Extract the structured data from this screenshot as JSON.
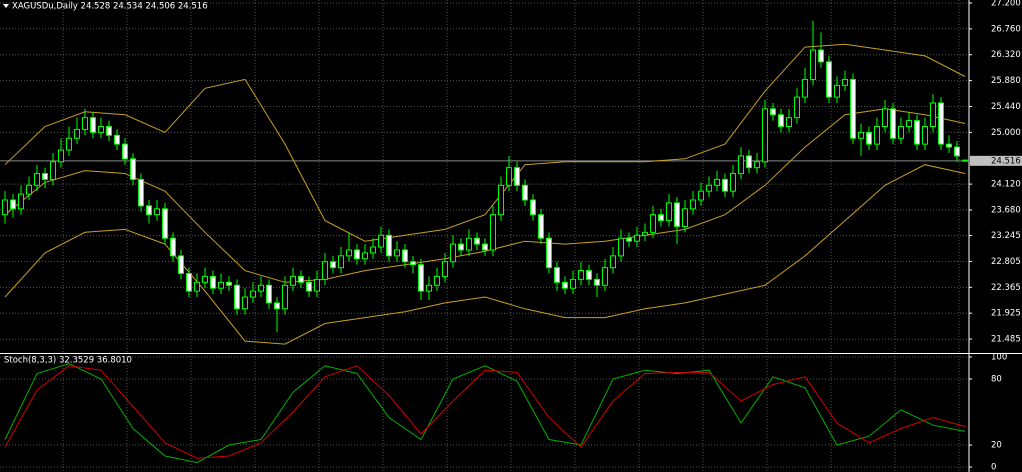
{
  "chart_data": [
    {
      "type": "candlestick",
      "title": "XAGUSDu,Daily 24.528 24.534 24.506 24.516",
      "candle_color": "#00ff00",
      "up_fill": "#000000",
      "down_fill": "#ffffff",
      "ohlc": [
        [
          23.6,
          24.0,
          23.45,
          23.85
        ],
        [
          23.85,
          23.95,
          23.55,
          23.7
        ],
        [
          23.7,
          24.1,
          23.6,
          23.95
        ],
        [
          23.95,
          24.25,
          23.85,
          24.1
        ],
        [
          24.1,
          24.45,
          24.0,
          24.3
        ],
        [
          24.3,
          24.4,
          24.05,
          24.2
        ],
        [
          24.2,
          24.65,
          24.1,
          24.5
        ],
        [
          24.5,
          24.9,
          24.4,
          24.7
        ],
        [
          24.7,
          25.1,
          24.6,
          24.9
        ],
        [
          24.9,
          25.25,
          24.8,
          25.05
        ],
        [
          25.05,
          25.4,
          24.95,
          25.25
        ],
        [
          25.25,
          25.35,
          24.9,
          25.0
        ],
        [
          25.0,
          25.25,
          24.9,
          25.1
        ],
        [
          25.1,
          25.2,
          24.85,
          24.95
        ],
        [
          24.95,
          25.05,
          24.7,
          24.8
        ],
        [
          24.8,
          24.9,
          24.45,
          24.55
        ],
        [
          24.55,
          24.65,
          24.1,
          24.2
        ],
        [
          24.2,
          24.3,
          23.65,
          23.75
        ],
        [
          23.75,
          23.85,
          23.45,
          23.6
        ],
        [
          23.6,
          23.85,
          23.5,
          23.7
        ],
        [
          23.7,
          23.8,
          23.1,
          23.2
        ],
        [
          23.2,
          23.3,
          22.8,
          22.9
        ],
        [
          22.9,
          23.0,
          22.5,
          22.6
        ],
        [
          22.6,
          22.7,
          22.2,
          22.3
        ],
        [
          22.3,
          22.6,
          22.2,
          22.45
        ],
        [
          22.45,
          22.7,
          22.35,
          22.55
        ],
        [
          22.55,
          22.65,
          22.25,
          22.35
        ],
        [
          22.35,
          22.6,
          22.25,
          22.45
        ],
        [
          22.45,
          22.55,
          22.3,
          22.4
        ],
        [
          22.4,
          22.5,
          21.9,
          22.0
        ],
        [
          22.0,
          22.35,
          21.9,
          22.2
        ],
        [
          22.2,
          22.45,
          22.1,
          22.3
        ],
        [
          22.3,
          22.55,
          22.2,
          22.4
        ],
        [
          22.4,
          22.5,
          22.0,
          22.1
        ],
        [
          22.1,
          22.2,
          21.6,
          22.0
        ],
        [
          22.0,
          22.55,
          21.9,
          22.4
        ],
        [
          22.4,
          22.7,
          22.3,
          22.55
        ],
        [
          22.55,
          22.65,
          22.35,
          22.45
        ],
        [
          22.45,
          22.55,
          22.2,
          22.3
        ],
        [
          22.3,
          22.65,
          22.2,
          22.5
        ],
        [
          22.5,
          22.95,
          22.4,
          22.8
        ],
        [
          22.8,
          22.9,
          22.6,
          22.7
        ],
        [
          22.7,
          23.05,
          22.6,
          22.9
        ],
        [
          22.9,
          23.3,
          22.8,
          23.0
        ],
        [
          23.0,
          23.1,
          22.75,
          22.85
        ],
        [
          22.85,
          23.1,
          22.75,
          22.95
        ],
        [
          22.95,
          23.2,
          22.85,
          23.05
        ],
        [
          23.05,
          23.4,
          22.95,
          23.25
        ],
        [
          23.25,
          23.35,
          22.8,
          22.9
        ],
        [
          22.9,
          23.15,
          22.8,
          23.0
        ],
        [
          23.0,
          23.1,
          22.7,
          22.8
        ],
        [
          22.8,
          22.9,
          22.6,
          22.75
        ],
        [
          22.75,
          22.85,
          22.15,
          22.3
        ],
        [
          22.3,
          22.55,
          22.15,
          22.4
        ],
        [
          22.4,
          22.7,
          22.3,
          22.55
        ],
        [
          22.55,
          22.95,
          22.45,
          22.8
        ],
        [
          22.8,
          23.25,
          22.7,
          23.1
        ],
        [
          23.1,
          23.2,
          22.9,
          23.0
        ],
        [
          23.0,
          23.35,
          22.9,
          23.2
        ],
        [
          23.2,
          23.3,
          23.0,
          23.1
        ],
        [
          23.1,
          23.2,
          22.9,
          23.0
        ],
        [
          23.0,
          23.75,
          22.9,
          23.6
        ],
        [
          23.6,
          24.25,
          23.5,
          24.1
        ],
        [
          24.1,
          24.6,
          24.0,
          24.4
        ],
        [
          24.4,
          24.5,
          24.0,
          24.1
        ],
        [
          24.1,
          24.2,
          23.75,
          23.85
        ],
        [
          23.85,
          23.95,
          23.5,
          23.6
        ],
        [
          23.6,
          23.7,
          23.1,
          23.2
        ],
        [
          23.2,
          23.3,
          22.6,
          22.7
        ],
        [
          22.7,
          22.8,
          22.3,
          22.45
        ],
        [
          22.45,
          22.55,
          22.25,
          22.35
        ],
        [
          22.35,
          22.65,
          22.25,
          22.5
        ],
        [
          22.5,
          22.8,
          22.4,
          22.65
        ],
        [
          22.65,
          22.75,
          22.4,
          22.5
        ],
        [
          22.5,
          22.6,
          22.2,
          22.4
        ],
        [
          22.4,
          22.85,
          22.3,
          22.7
        ],
        [
          22.7,
          23.05,
          22.6,
          22.9
        ],
        [
          22.9,
          23.35,
          22.8,
          23.2
        ],
        [
          23.2,
          23.3,
          23.05,
          23.15
        ],
        [
          23.15,
          23.4,
          23.05,
          23.25
        ],
        [
          23.25,
          23.45,
          23.15,
          23.3
        ],
        [
          23.3,
          23.75,
          23.2,
          23.6
        ],
        [
          23.6,
          23.7,
          23.4,
          23.5
        ],
        [
          23.5,
          23.95,
          23.4,
          23.8
        ],
        [
          23.8,
          23.9,
          23.1,
          23.4
        ],
        [
          23.4,
          23.85,
          23.3,
          23.7
        ],
        [
          23.7,
          24.0,
          23.6,
          23.85
        ],
        [
          23.85,
          24.15,
          23.75,
          24.0
        ],
        [
          24.0,
          24.25,
          23.9,
          24.1
        ],
        [
          24.1,
          24.35,
          24.0,
          24.2
        ],
        [
          24.2,
          24.3,
          23.9,
          24.0
        ],
        [
          24.0,
          24.45,
          23.9,
          24.3
        ],
        [
          24.3,
          24.75,
          24.2,
          24.6
        ],
        [
          24.6,
          24.7,
          24.3,
          24.4
        ],
        [
          24.4,
          24.65,
          24.3,
          24.5
        ],
        [
          24.5,
          25.55,
          24.4,
          25.4
        ],
        [
          25.4,
          25.5,
          25.2,
          25.3
        ],
        [
          25.3,
          25.4,
          25.0,
          25.1
        ],
        [
          25.1,
          25.4,
          25.0,
          25.25
        ],
        [
          25.25,
          25.75,
          25.15,
          25.6
        ],
        [
          25.6,
          26.1,
          25.5,
          25.9
        ],
        [
          25.9,
          26.9,
          25.8,
          26.4
        ],
        [
          26.4,
          26.7,
          26.1,
          26.2
        ],
        [
          26.2,
          26.3,
          25.5,
          25.6
        ],
        [
          25.6,
          25.95,
          25.5,
          25.8
        ],
        [
          25.8,
          26.05,
          25.7,
          25.9
        ],
        [
          25.9,
          26.0,
          24.8,
          24.9
        ],
        [
          24.9,
          25.15,
          24.6,
          25.0
        ],
        [
          25.0,
          25.1,
          24.7,
          24.8
        ],
        [
          24.8,
          25.25,
          24.7,
          25.1
        ],
        [
          25.1,
          25.55,
          25.0,
          25.4
        ],
        [
          25.4,
          25.5,
          24.8,
          24.9
        ],
        [
          24.9,
          25.25,
          24.8,
          25.1
        ],
        [
          25.1,
          25.35,
          25.0,
          25.2
        ],
        [
          25.2,
          25.3,
          24.7,
          24.8
        ],
        [
          24.8,
          25.25,
          24.7,
          25.1
        ],
        [
          25.1,
          25.65,
          25.0,
          25.5
        ],
        [
          25.5,
          25.6,
          24.7,
          24.8
        ],
        [
          24.8,
          24.95,
          24.65,
          24.75
        ],
        [
          24.75,
          24.85,
          24.5,
          24.6
        ],
        [
          24.528,
          24.534,
          24.506,
          24.516
        ]
      ],
      "bands_x": [
        0,
        5,
        10,
        15,
        20,
        25,
        30,
        35,
        40,
        45,
        50,
        55,
        60,
        65,
        70,
        75,
        80,
        85,
        90,
        95,
        100,
        105,
        110,
        115,
        120
      ],
      "bands": [
        {
          "color": "#c8a020",
          "values": [
            24.45,
            25.1,
            25.35,
            25.3,
            25.0,
            25.75,
            25.9,
            24.8,
            23.5,
            23.15,
            23.25,
            23.35,
            23.6,
            24.45,
            24.5,
            24.5,
            24.5,
            24.55,
            24.8,
            25.7,
            26.45,
            26.5,
            26.4,
            26.3,
            25.95
          ]
        },
        {
          "color": "#c8a020",
          "values": [
            23.6,
            24.15,
            24.35,
            24.3,
            24.0,
            23.3,
            22.65,
            22.45,
            22.5,
            22.65,
            22.75,
            22.85,
            22.98,
            23.15,
            23.1,
            23.15,
            23.25,
            23.35,
            23.6,
            24.1,
            24.75,
            25.3,
            25.4,
            25.3,
            25.15
          ]
        },
        {
          "color": "#c8a020",
          "values": [
            22.2,
            22.95,
            23.3,
            23.35,
            23.1,
            22.3,
            21.45,
            21.4,
            21.75,
            21.85,
            21.95,
            22.1,
            22.2,
            22.0,
            21.85,
            21.85,
            22.0,
            22.1,
            22.25,
            22.4,
            22.9,
            23.5,
            24.1,
            24.45,
            24.3
          ]
        }
      ],
      "current_price": 24.516,
      "ylim": [
        21.265,
        27.251
      ],
      "yticks": [
        {
          "value": 27.2,
          "label": "27.200"
        },
        {
          "value": 26.76,
          "label": "26.760"
        },
        {
          "value": 26.32,
          "label": "26.320"
        },
        {
          "value": 25.88,
          "label": "25.880"
        },
        {
          "value": 25.44,
          "label": "25.440"
        },
        {
          "value": 25.0,
          "label": "25.000"
        },
        {
          "value": 24.12,
          "label": "24.120"
        },
        {
          "value": 23.68,
          "label": "23.680"
        },
        {
          "value": 23.245,
          "label": "23.245"
        },
        {
          "value": 22.805,
          "label": "22.805"
        },
        {
          "value": 22.365,
          "label": "22.365"
        },
        {
          "value": 21.925,
          "label": "21.925"
        },
        {
          "value": 21.485,
          "label": "21.485"
        }
      ],
      "grid": true
    },
    {
      "type": "line",
      "title": "Stoch(8,3,3) 32.3529 36.8010",
      "x": [
        0,
        4,
        8,
        12,
        16,
        20,
        24,
        28,
        32,
        36,
        40,
        44,
        48,
        52,
        56,
        60,
        64,
        68,
        72,
        76,
        80,
        84,
        88,
        92,
        96,
        100,
        104,
        108,
        112,
        116,
        120
      ],
      "series": [
        {
          "color": "#00b000",
          "values": [
            25,
            85,
            94,
            80,
            35,
            10,
            4,
            20,
            25,
            68,
            92,
            85,
            45,
            25,
            80,
            92,
            78,
            25,
            20,
            80,
            88,
            85,
            88,
            40,
            82,
            72,
            20,
            28,
            52,
            38,
            32.3529
          ]
        },
        {
          "color": "#d00000",
          "values": [
            18,
            70,
            92,
            88,
            55,
            22,
            8,
            10,
            22,
            50,
            82,
            92,
            65,
            30,
            60,
            88,
            86,
            45,
            18,
            60,
            85,
            86,
            86,
            60,
            75,
            82,
            40,
            22,
            35,
            45,
            36.801
          ]
        }
      ],
      "ylim": [
        -4.5,
        100.9
      ],
      "yticks": [
        100,
        80,
        20,
        0
      ],
      "grid": true
    }
  ]
}
